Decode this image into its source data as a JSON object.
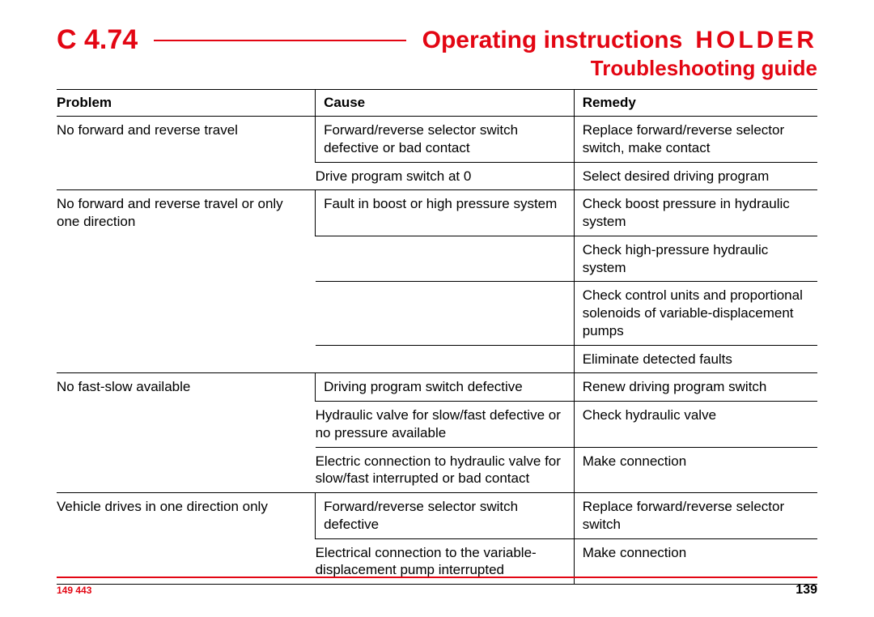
{
  "header": {
    "code": "C 4.74",
    "title": "Operating instructions",
    "brand": "HOLDER",
    "subtitle": "Troubleshooting  guide"
  },
  "table": {
    "headers": {
      "problem": "Problem",
      "cause": "Cause",
      "remedy": "Remedy"
    },
    "groups": [
      {
        "problem": "No forward and reverse travel",
        "rows": [
          {
            "cause": "Forward/reverse selector switch defective or bad contact",
            "remedy": "Replace forward/reverse selector switch, make contact"
          },
          {
            "cause": "Drive program switch at 0",
            "remedy": "Select desired driving program"
          }
        ]
      },
      {
        "problem": "No forward and reverse travel or only one direction",
        "rows": [
          {
            "cause": "Fault in boost or high pressure system",
            "remedy": "Check boost pressure in hydraulic system"
          },
          {
            "cause": "",
            "remedy": "Check high-pressure hydraulic system"
          },
          {
            "cause": "",
            "remedy": "Check control units and proportional solenoids of variable-displacement pumps"
          },
          {
            "cause": "",
            "remedy": "Eliminate detected faults"
          }
        ]
      },
      {
        "problem": "No fast-slow available",
        "rows": [
          {
            "cause": "Driving program switch defective",
            "remedy": "Renew driving program switch"
          },
          {
            "cause": "Hydraulic valve for slow/fast defective or no pressure available",
            "remedy": "Check hydraulic valve"
          },
          {
            "cause": "Electric connection to hydraulic valve for slow/fast interrupted or bad contact",
            "remedy": "Make connection"
          }
        ]
      },
      {
        "problem": "Vehicle drives in one direction only",
        "rows": [
          {
            "cause": "Forward/reverse selector switch defective",
            "remedy": "Replace forward/reverse selector switch"
          },
          {
            "cause": "Electrical connection to the variable-displacement pump interrupted",
            "remedy": "Make connection"
          }
        ]
      }
    ]
  },
  "footer": {
    "doc_id": "149 443",
    "page": "139"
  },
  "colors": {
    "accent": "#e30613",
    "text": "#000000",
    "border": "#000000",
    "background": "#ffffff"
  }
}
